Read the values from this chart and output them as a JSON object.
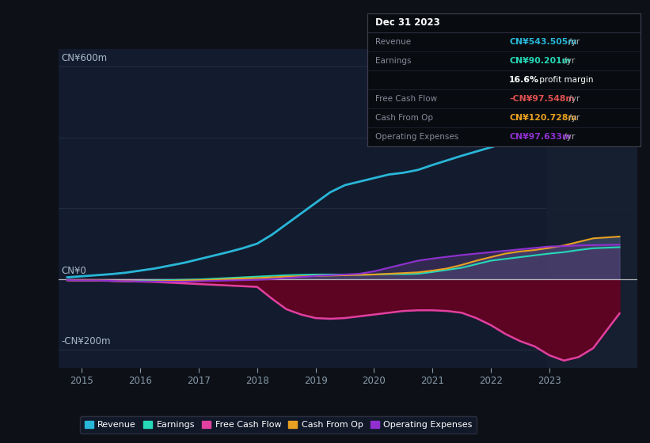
{
  "background_color": "#0d1117",
  "plot_bg_color": "#131c2e",
  "ylim": [
    -250,
    650
  ],
  "xlim": [
    2014.6,
    2024.5
  ],
  "ytick_vals": [
    -200,
    0,
    600
  ],
  "ytick_labels": [
    "-CN¥200m",
    "CN¥0",
    "CN¥600m"
  ],
  "xticks": [
    2015,
    2016,
    2017,
    2018,
    2019,
    2020,
    2021,
    2022,
    2023
  ],
  "grid_color": "#2a3a4a",
  "zero_line_color": "#cccccc",
  "legend": [
    {
      "label": "Revenue",
      "color": "#29b6d8"
    },
    {
      "label": "Earnings",
      "color": "#26d8b8"
    },
    {
      "label": "Free Cash Flow",
      "color": "#e040a0"
    },
    {
      "label": "Cash From Op",
      "color": "#e8a020"
    },
    {
      "label": "Operating Expenses",
      "color": "#9030d0"
    }
  ],
  "info_box": {
    "title": "Dec 31 2023",
    "rows": [
      {
        "label": "Revenue",
        "value": "CN¥543.505m",
        "suffix": " /yr",
        "color": "#29b6d8"
      },
      {
        "label": "Earnings",
        "value": "CN¥90.201m",
        "suffix": " /yr",
        "color": "#26d8b8"
      },
      {
        "label": "",
        "value": "16.6%",
        "suffix": " profit margin",
        "color": "white",
        "bold": true
      },
      {
        "label": "Free Cash Flow",
        "value": "-CN¥97.548m",
        "suffix": " /yr",
        "color": "#e05050"
      },
      {
        "label": "Cash From Op",
        "value": "CN¥120.728m",
        "suffix": " /yr",
        "color": "#e8a020"
      },
      {
        "label": "Operating Expenses",
        "value": "CN¥97.633m",
        "suffix": " /yr",
        "color": "#9030d0"
      }
    ]
  },
  "series": {
    "x": [
      2014.75,
      2015.0,
      2015.25,
      2015.5,
      2015.75,
      2016.0,
      2016.25,
      2016.5,
      2016.75,
      2017.0,
      2017.25,
      2017.5,
      2017.75,
      2018.0,
      2018.25,
      2018.5,
      2018.75,
      2019.0,
      2019.25,
      2019.5,
      2019.75,
      2020.0,
      2020.25,
      2020.5,
      2020.75,
      2021.0,
      2021.25,
      2021.5,
      2021.75,
      2022.0,
      2022.25,
      2022.5,
      2022.75,
      2023.0,
      2023.25,
      2023.5,
      2023.75,
      2024.2
    ],
    "revenue": [
      5,
      8,
      11,
      14,
      18,
      24,
      30,
      38,
      46,
      56,
      66,
      76,
      87,
      100,
      125,
      155,
      185,
      215,
      245,
      265,
      275,
      285,
      295,
      300,
      308,
      322,
      335,
      348,
      360,
      372,
      384,
      395,
      408,
      435,
      462,
      492,
      522,
      543
    ],
    "earnings": [
      -3,
      -4,
      -4,
      -5,
      -5,
      -5,
      -4,
      -3,
      -2,
      -1,
      1,
      3,
      5,
      7,
      9,
      11,
      12,
      13,
      13,
      13,
      12,
      13,
      14,
      14,
      15,
      20,
      26,
      32,
      42,
      52,
      57,
      62,
      67,
      72,
      76,
      82,
      87,
      90
    ],
    "free_cash_flow": [
      -3,
      -4,
      -4,
      -5,
      -6,
      -7,
      -8,
      -10,
      -12,
      -14,
      -16,
      -18,
      -20,
      -22,
      -55,
      -85,
      -100,
      -110,
      -112,
      -110,
      -105,
      -100,
      -95,
      -90,
      -88,
      -88,
      -90,
      -95,
      -110,
      -130,
      -155,
      -175,
      -190,
      -215,
      -230,
      -220,
      -195,
      -97
    ],
    "cash_from_op": [
      -3,
      -4,
      -4,
      -5,
      -6,
      -7,
      -6,
      -5,
      -4,
      -3,
      -2,
      0,
      2,
      3,
      5,
      7,
      8,
      9,
      10,
      11,
      12,
      13,
      15,
      17,
      19,
      24,
      30,
      40,
      52,
      62,
      72,
      78,
      82,
      88,
      95,
      105,
      115,
      120
    ],
    "operating_expenses": [
      -3,
      -4,
      -4,
      -5,
      -6,
      -7,
      -7,
      -7,
      -7,
      -6,
      -5,
      -4,
      -3,
      -2,
      0,
      3,
      6,
      9,
      11,
      13,
      15,
      22,
      32,
      42,
      52,
      58,
      63,
      68,
      72,
      76,
      80,
      84,
      88,
      92,
      93,
      95,
      96,
      97
    ]
  }
}
